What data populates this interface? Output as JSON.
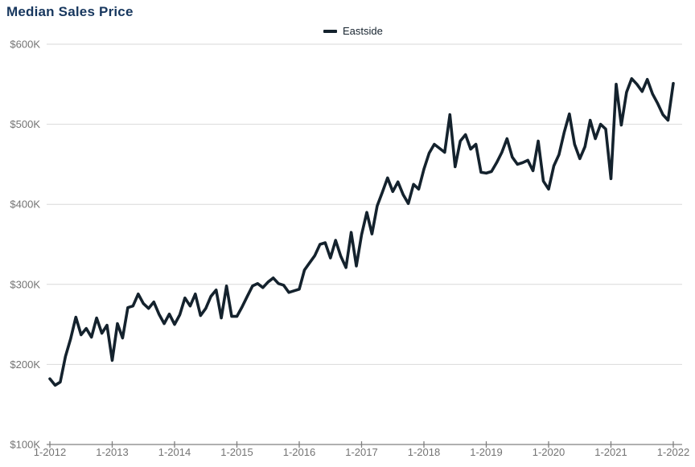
{
  "page": {
    "title": "Median Sales Price"
  },
  "legend": {
    "series_label": "Eastside"
  },
  "colors": {
    "line": "#14222d",
    "title": "#17375e",
    "legend_text": "#16232e",
    "axis_text": "#737373",
    "gridline": "#d9d9d9",
    "axis_line": "#808080",
    "background": "#ffffff"
  },
  "chart_data": {
    "type": "line",
    "title": "Median Sales Price",
    "x_frequency": "monthly",
    "x_range": [
      "1-2012",
      "1-2022"
    ],
    "x_tick_labels": [
      "1-2012",
      "1-2013",
      "1-2014",
      "1-2015",
      "1-2016",
      "1-2017",
      "1-2018",
      "1-2019",
      "1-2020",
      "1-2021",
      "1-2022"
    ],
    "y_tick_labels": [
      "$100K",
      "$200K",
      "$300K",
      "$400K",
      "$500K",
      "$600K"
    ],
    "y_tick_values": [
      100,
      200,
      300,
      400,
      500,
      600
    ],
    "ylim": [
      100,
      600
    ],
    "y_unit": "thousand USD",
    "grid": "horizontal",
    "legend_position": "top-center",
    "series": [
      {
        "name": "Eastside",
        "units": "USD thousands, median sales price per month",
        "values": [
          182,
          174,
          178,
          210,
          232,
          259,
          237,
          245,
          234,
          258,
          239,
          249,
          205,
          251,
          233,
          271,
          273,
          288,
          276,
          270,
          278,
          263,
          251,
          263,
          250,
          262,
          283,
          273,
          288,
          261,
          270,
          285,
          293,
          258,
          298,
          260,
          260,
          272,
          285,
          298,
          301,
          296,
          303,
          308,
          301,
          299,
          290,
          292,
          294,
          318,
          327,
          336,
          350,
          352,
          333,
          355,
          335,
          321,
          365,
          323,
          362,
          390,
          363,
          398,
          415,
          433,
          416,
          428,
          412,
          401,
          425,
          419,
          444,
          464,
          475,
          470,
          465,
          512,
          447,
          479,
          487,
          469,
          475,
          440,
          439,
          441,
          452,
          465,
          482,
          459,
          450,
          452,
          455,
          442,
          479,
          429,
          419,
          448,
          462,
          490,
          513,
          475,
          457,
          472,
          505,
          482,
          500,
          494,
          432,
          550,
          499,
          540,
          557,
          550,
          541,
          556,
          538,
          526,
          512,
          505,
          551
        ]
      }
    ]
  }
}
